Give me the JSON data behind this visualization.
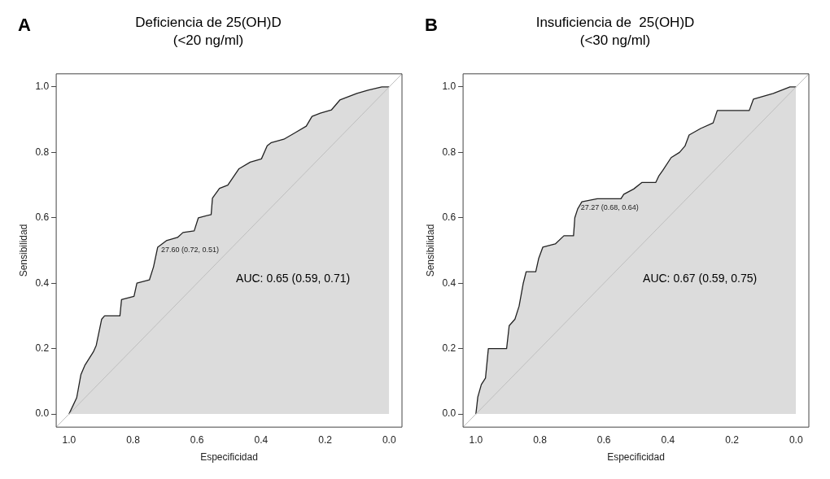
{
  "chart_data": [
    {
      "type": "area",
      "title": "Deficiencia de 25(OH)D",
      "subtitle": "(<20 ng/ml)",
      "xlabel": "Especificidad",
      "ylabel": "Sensibilidad",
      "annotations": [
        "A",
        "AUC: 0.65 (0.59, 0.71)",
        {
          "text": "27.60 (0.72, 0.51)",
          "x": 0.72,
          "y": 0.51
        }
      ],
      "xlim": [
        1.04,
        -0.04
      ],
      "ylim": [
        -0.04,
        1.04
      ],
      "xticks": [
        {
          "value": 1,
          "label": "1.0"
        },
        {
          "value": 0.8,
          "label": "0.8"
        },
        {
          "value": 0.6,
          "label": "0.6"
        },
        {
          "value": 0.4,
          "label": "0.4"
        },
        {
          "value": 0.2,
          "label": "0.2"
        },
        {
          "value": 0,
          "label": "0.0"
        }
      ],
      "yticks": [
        {
          "value": 0,
          "label": "0.0"
        },
        {
          "value": 0.2,
          "label": "0.2"
        },
        {
          "value": 0.4,
          "label": "0.4"
        },
        {
          "value": 0.6,
          "label": "0.6"
        },
        {
          "value": 0.8,
          "label": "0.8"
        },
        {
          "value": 1,
          "label": "1.0"
        }
      ],
      "grid": false,
      "legend": false,
      "series": [
        {
          "type": "line",
          "color": "#bebebe",
          "x": [
            1.04,
            -0.04
          ],
          "values": [
            -0.04,
            1.04
          ]
        },
        {
          "type": "area",
          "color": "#222222",
          "x": [
            1.0,
            0.976,
            0.963,
            0.95,
            0.924,
            0.915,
            0.898,
            0.889,
            0.841,
            0.836,
            0.797,
            0.788,
            0.749,
            0.736,
            0.723,
            0.696,
            0.661,
            0.644,
            0.609,
            0.596,
            0.556,
            0.552,
            0.53,
            0.504,
            0.469,
            0.434,
            0.399,
            0.381,
            0.368,
            0.329,
            0.294,
            0.259,
            0.241,
            0.215,
            0.18,
            0.154,
            0.101,
            0.066,
            0.023,
            0.0
          ],
          "values": [
            0.0,
            0.05,
            0.12,
            0.15,
            0.19,
            0.21,
            0.29,
            0.3,
            0.3,
            0.35,
            0.36,
            0.4,
            0.41,
            0.45,
            0.51,
            0.53,
            0.54,
            0.555,
            0.56,
            0.6,
            0.61,
            0.66,
            0.69,
            0.7,
            0.75,
            0.77,
            0.78,
            0.82,
            0.83,
            0.84,
            0.86,
            0.88,
            0.91,
            0.92,
            0.93,
            0.96,
            0.98,
            0.99,
            1.0,
            1.0
          ]
        }
      ]
    },
    {
      "type": "area",
      "title": "Insuficiencia de  25(OH)D",
      "subtitle": "(<30 ng/ml)",
      "xlabel": "Especificidad",
      "ylabel": "Sensibilidad",
      "annotations": [
        "B",
        "AUC: 0.67 (0.59, 0.75)",
        {
          "text": "27.27 (0.68, 0.64)",
          "x": 0.68,
          "y": 0.64
        }
      ],
      "xlim": [
        1.04,
        -0.04
      ],
      "ylim": [
        -0.04,
        1.04
      ],
      "xticks": [
        {
          "value": 1,
          "label": "1.0"
        },
        {
          "value": 0.8,
          "label": "0.8"
        },
        {
          "value": 0.6,
          "label": "0.6"
        },
        {
          "value": 0.4,
          "label": "0.4"
        },
        {
          "value": 0.2,
          "label": "0.2"
        },
        {
          "value": 0,
          "label": "0.0"
        }
      ],
      "yticks": [
        {
          "value": 0,
          "label": "0.0"
        },
        {
          "value": 0.2,
          "label": "0.2"
        },
        {
          "value": 0.4,
          "label": "0.4"
        },
        {
          "value": 0.6,
          "label": "0.6"
        },
        {
          "value": 0.8,
          "label": "0.8"
        },
        {
          "value": 1,
          "label": "1.0"
        }
      ],
      "grid": false,
      "legend": false,
      "series": [
        {
          "type": "line",
          "color": "#bebebe",
          "x": [
            1.04,
            -0.04
          ],
          "values": [
            -0.04,
            1.04
          ]
        },
        {
          "type": "area",
          "color": "#222222",
          "x": [
            1.0,
            0.994,
            0.983,
            0.97,
            0.961,
            0.904,
            0.896,
            0.878,
            0.865,
            0.852,
            0.843,
            0.813,
            0.804,
            0.791,
            0.752,
            0.725,
            0.695,
            0.691,
            0.682,
            0.669,
            0.621,
            0.547,
            0.538,
            0.507,
            0.481,
            0.438,
            0.429,
            0.416,
            0.39,
            0.364,
            0.347,
            0.334,
            0.298,
            0.259,
            0.246,
            0.146,
            0.133,
            0.071,
            0.019,
            0.0
          ],
          "values": [
            0.0,
            0.052,
            0.09,
            0.11,
            0.2,
            0.2,
            0.27,
            0.29,
            0.33,
            0.4,
            0.435,
            0.435,
            0.475,
            0.51,
            0.52,
            0.545,
            0.545,
            0.6,
            0.627,
            0.649,
            0.658,
            0.658,
            0.672,
            0.688,
            0.708,
            0.708,
            0.727,
            0.745,
            0.784,
            0.8,
            0.819,
            0.853,
            0.873,
            0.89,
            0.928,
            0.928,
            0.963,
            0.98,
            1.0,
            1.0
          ]
        }
      ]
    }
  ]
}
